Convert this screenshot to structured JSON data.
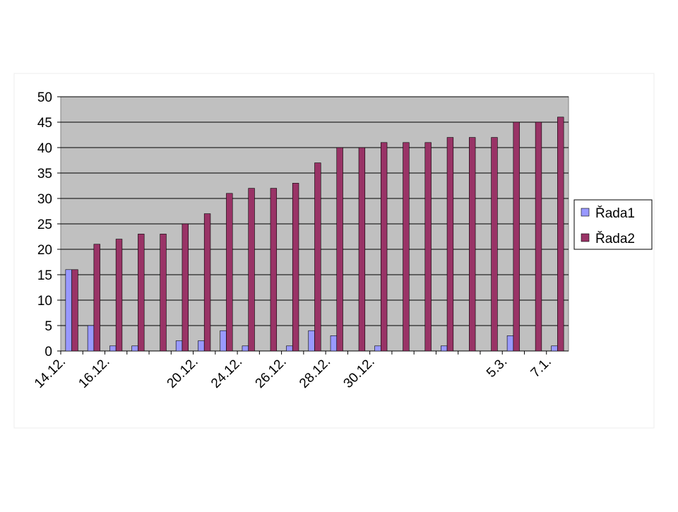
{
  "chart_data": {
    "type": "bar",
    "categories": [
      "14.12.",
      null,
      "16.12.",
      null,
      null,
      null,
      "20.12.",
      null,
      "24.12.",
      null,
      "26.12.",
      null,
      "28.12.",
      null,
      "30.12.",
      null,
      null,
      null,
      null,
      null,
      "5.3.",
      null,
      "7.1."
    ],
    "series": [
      {
        "name": "Řada1",
        "color": "#9999ff",
        "values": [
          16,
          5,
          1,
          1,
          0,
          2,
          2,
          4,
          1,
          0,
          1,
          4,
          3,
          0,
          1,
          0,
          0,
          1,
          0,
          0,
          3,
          0,
          1
        ]
      },
      {
        "name": "Řada2",
        "color": "#993366",
        "values": [
          16,
          21,
          22,
          23,
          23,
          25,
          27,
          31,
          32,
          32,
          33,
          37,
          40,
          40,
          41,
          41,
          41,
          42,
          42,
          42,
          45,
          45,
          46
        ]
      }
    ],
    "ylim": [
      0,
      50
    ],
    "yticks": [
      0,
      5,
      10,
      15,
      20,
      25,
      30,
      35,
      40,
      45,
      50
    ],
    "grid": true,
    "legend": "right"
  }
}
